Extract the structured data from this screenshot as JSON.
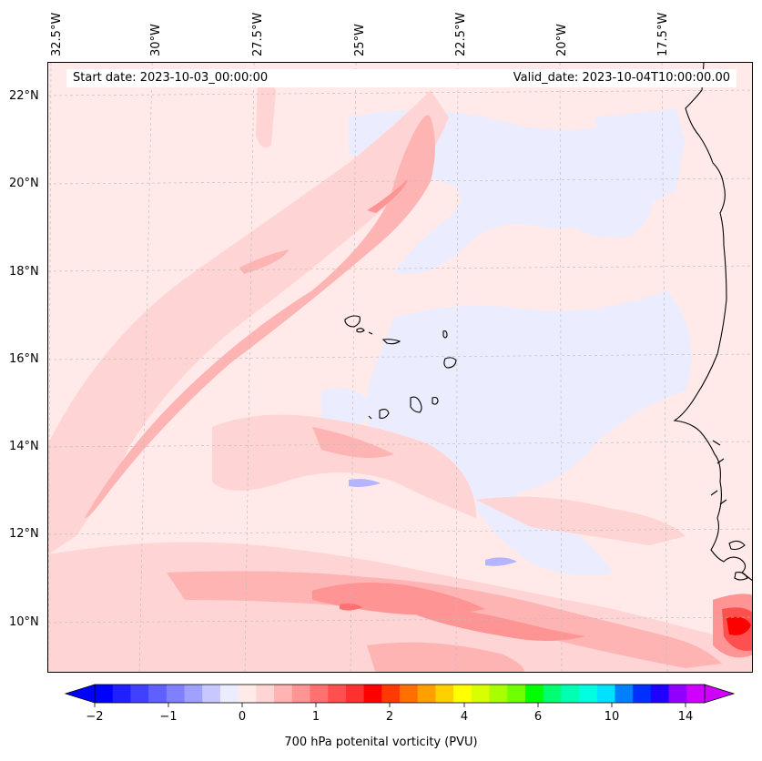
{
  "map": {
    "start_date": "Start date: 2023-10-03_00:00:00",
    "valid_date": "Valid_date: 2023-10-04T10:00:00.00",
    "lon_labels": [
      "32.5°W",
      "30°W",
      "27.5°W",
      "25°W",
      "22.5°W",
      "20°W",
      "17.5°W"
    ],
    "lat_labels": [
      "22°N",
      "20°N",
      "18°N",
      "16°N",
      "14°N",
      "12°N",
      "10°N"
    ]
  },
  "colorbar": {
    "title": "700 hPa potenital vorticity (PVU)",
    "tick_labels": [
      "−2",
      "−1",
      "0",
      "1",
      "2",
      "4",
      "6",
      "10",
      "14"
    ],
    "levels": [
      -2,
      -1.75,
      -1.5,
      -1.25,
      -1,
      -0.75,
      -0.5,
      -0.25,
      0,
      0.25,
      0.5,
      0.75,
      1,
      1.25,
      1.5,
      1.75,
      2,
      2.5,
      3,
      3.5,
      4,
      4.5,
      5,
      5.5,
      6,
      7,
      8,
      9,
      10,
      11,
      12,
      13,
      14,
      15
    ],
    "colors": [
      "#0000ff",
      "#2020ff",
      "#4040ff",
      "#6060ff",
      "#8080ff",
      "#a0a0ff",
      "#c8c8ff",
      "#ececff",
      "#ffe9e9",
      "#ffd4d4",
      "#ffb4b4",
      "#ff9494",
      "#ff7070",
      "#ff5050",
      "#ff3030",
      "#ff0000",
      "#ff3a00",
      "#ff7000",
      "#ffa000",
      "#ffd000",
      "#ffff00",
      "#d8ff00",
      "#a8ff00",
      "#70ff00",
      "#00ff00",
      "#00ff70",
      "#00ffb0",
      "#00ffe0",
      "#00e0ff",
      "#0080ff",
      "#0030ff",
      "#2000ff",
      "#9000ff",
      "#d000ff"
    ]
  }
}
